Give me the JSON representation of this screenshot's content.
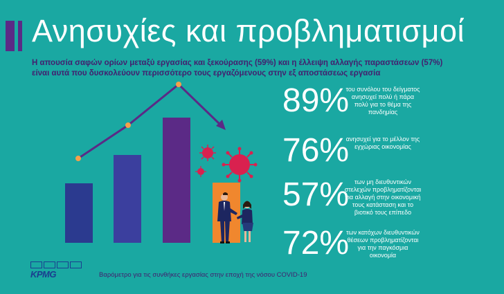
{
  "header": {
    "title": "Ανησυχίες και προβληματισμοί",
    "subtitle_line1": "Η απουσία σαφών ορίων μεταξύ εργασίας και ξεκούρασης (59%) και η έλλειψη αλλαγής παραστάσεων (57%)",
    "subtitle_line2": "είναι αυτά που δυσκολεύουν περισσότερο τους εργαζόμενους στην εξ αποστάσεως εργασία"
  },
  "stats": [
    {
      "value": "89%",
      "desc_lines": [
        "του συνόλου του δείγματος",
        "ανησυχεί πολύ ή πάρα",
        "πολύ για το θέμα της",
        "πανδημίας"
      ]
    },
    {
      "value": "76%",
      "desc_lines": [
        "ανησυχεί για το μέλλον της",
        "εγχώριας οικονομίας"
      ]
    },
    {
      "value": "57%",
      "desc_lines": [
        "των μη διευθυντικών",
        "στελεχών προβληματίζονται",
        "για αλλαγή στην οικονομική",
        "τους κατάσταση και το",
        "βιοτικό τους επίπεδο"
      ]
    },
    {
      "value": "72%",
      "desc_lines": [
        "των κατόχων διευθυντικών",
        "θέσεων προβληματίζονται",
        "για την παγκόσμια",
        "οικονομία"
      ]
    }
  ],
  "footer": {
    "logo": "KPMG",
    "text": "Βαρόμετρο για τις συνθήκες εργασίας στην εποχή της νόσου COVID-19"
  },
  "colors": {
    "background": "#1aa8a2",
    "accent_purple": "#5b2a86",
    "dark_purple": "#43206f",
    "bar_dark_blue": "#2b3a8f",
    "bar_mid": "#3d3a9a",
    "bar_purple": "#5b2a86",
    "bar_orange": "#f0872e",
    "virus_red": "#d9214f",
    "dot_orange": "#f5a04a"
  },
  "icons": [
    "rising-bars-illustration",
    "virus-icon",
    "business-people-icon",
    "kpmg-logo"
  ]
}
